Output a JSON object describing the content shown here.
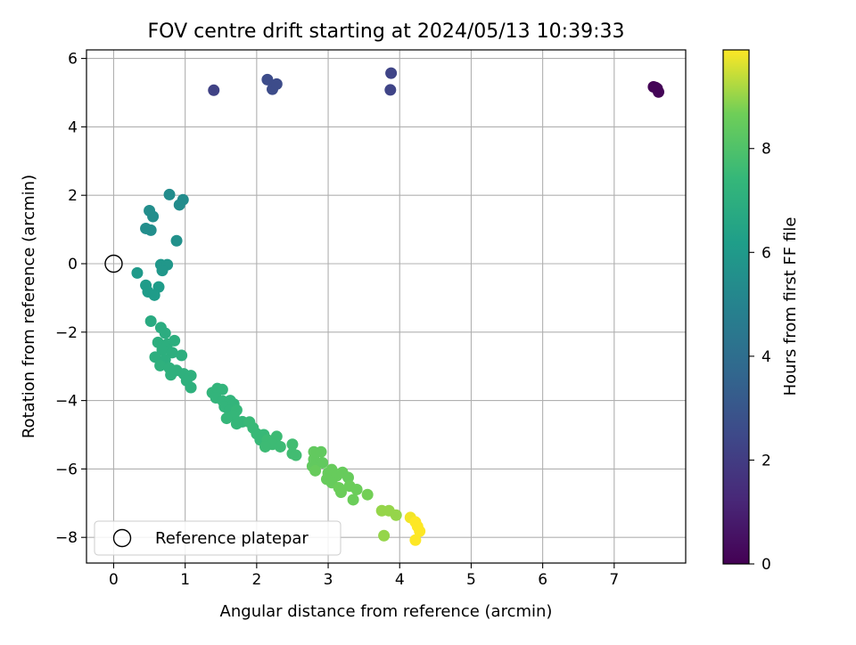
{
  "chart_data": {
    "type": "scatter",
    "title": "FOV centre drift starting at 2024/05/13 10:39:33",
    "xlabel": "Angular distance from reference (arcmin)",
    "ylabel": "Rotation from reference (arcmin)",
    "xlim": [
      -0.38,
      8.0
    ],
    "ylim": [
      -8.75,
      6.25
    ],
    "xticks": [
      0,
      1,
      2,
      3,
      4,
      5,
      6,
      7
    ],
    "yticks": [
      -8,
      -6,
      -4,
      -2,
      0,
      2,
      4,
      6
    ],
    "grid": true,
    "legend": {
      "entries": [
        "Reference platepar"
      ],
      "placement": "lower-left"
    },
    "colorbar": {
      "label": "Hours from first FF file",
      "range": [
        0,
        9.9
      ],
      "ticks": [
        0,
        2,
        4,
        6,
        8
      ],
      "colormap": "viridis"
    },
    "reference_point": {
      "x": 0,
      "y": 0
    },
    "points": [
      [
        7.55,
        5.17,
        0.05
      ],
      [
        7.6,
        5.12,
        0.08
      ],
      [
        7.62,
        5.02,
        0.1
      ],
      [
        7.58,
        5.15,
        0.12
      ],
      [
        1.4,
        5.07,
        2.2
      ],
      [
        3.87,
        5.08,
        2.3
      ],
      [
        3.88,
        5.57,
        2.3
      ],
      [
        2.15,
        5.38,
        2.6
      ],
      [
        2.22,
        5.1,
        2.6
      ],
      [
        2.28,
        5.25,
        2.6
      ],
      [
        0.78,
        2.02,
        5.4
      ],
      [
        0.97,
        1.87,
        5.4
      ],
      [
        0.92,
        1.72,
        5.4
      ],
      [
        0.5,
        1.55,
        5.5
      ],
      [
        0.55,
        1.38,
        5.5
      ],
      [
        0.45,
        1.03,
        5.5
      ],
      [
        0.52,
        0.98,
        5.5
      ],
      [
        0.88,
        0.67,
        5.6
      ],
      [
        0.66,
        -0.03,
        5.9
      ],
      [
        0.75,
        -0.03,
        5.9
      ],
      [
        0.68,
        -0.2,
        5.9
      ],
      [
        0.33,
        -0.27,
        6.0
      ],
      [
        0.45,
        -0.63,
        6.1
      ],
      [
        0.63,
        -0.68,
        6.1
      ],
      [
        0.48,
        -0.82,
        6.1
      ],
      [
        0.57,
        -0.92,
        6.1
      ],
      [
        0.52,
        -1.68,
        6.8
      ],
      [
        0.66,
        -1.87,
        6.9
      ],
      [
        0.72,
        -2.03,
        6.9
      ],
      [
        0.62,
        -2.3,
        7.0
      ],
      [
        0.75,
        -2.35,
        7.0
      ],
      [
        0.85,
        -2.25,
        7.0
      ],
      [
        0.68,
        -2.52,
        7.0
      ],
      [
        0.82,
        -2.6,
        7.0
      ],
      [
        0.58,
        -2.73,
        7.0
      ],
      [
        0.72,
        -2.8,
        7.0
      ],
      [
        0.95,
        -2.68,
        7.0
      ],
      [
        0.65,
        -2.98,
        7.1
      ],
      [
        0.78,
        -3.05,
        7.1
      ],
      [
        0.88,
        -3.12,
        7.1
      ],
      [
        0.8,
        -3.25,
        7.1
      ],
      [
        0.98,
        -3.22,
        7.1
      ],
      [
        1.08,
        -3.27,
        7.1
      ],
      [
        1.02,
        -3.42,
        7.1
      ],
      [
        1.08,
        -3.62,
        7.1
      ],
      [
        1.38,
        -3.77,
        7.3
      ],
      [
        1.45,
        -3.65,
        7.3
      ],
      [
        1.52,
        -3.68,
        7.3
      ],
      [
        1.43,
        -3.92,
        7.3
      ],
      [
        1.53,
        -4.02,
        7.3
      ],
      [
        1.63,
        -4.0,
        7.3
      ],
      [
        1.55,
        -4.18,
        7.3
      ],
      [
        1.68,
        -4.1,
        7.3
      ],
      [
        1.62,
        -4.3,
        7.3
      ],
      [
        1.72,
        -4.28,
        7.4
      ],
      [
        1.68,
        -4.45,
        7.4
      ],
      [
        1.58,
        -4.52,
        7.4
      ],
      [
        1.8,
        -4.62,
        7.4
      ],
      [
        1.72,
        -4.68,
        7.4
      ],
      [
        1.9,
        -4.63,
        7.5
      ],
      [
        1.95,
        -4.8,
        7.5
      ],
      [
        2.0,
        -4.97,
        7.5
      ],
      [
        2.1,
        -5.0,
        7.5
      ],
      [
        2.05,
        -5.15,
        7.5
      ],
      [
        2.15,
        -5.15,
        7.6
      ],
      [
        2.28,
        -5.05,
        7.6
      ],
      [
        2.22,
        -5.28,
        7.6
      ],
      [
        2.12,
        -5.35,
        7.6
      ],
      [
        2.33,
        -5.35,
        7.6
      ],
      [
        2.5,
        -5.28,
        7.7
      ],
      [
        2.5,
        -5.55,
        7.7
      ],
      [
        2.55,
        -5.6,
        7.7
      ],
      [
        2.8,
        -5.5,
        8.4
      ],
      [
        2.9,
        -5.5,
        8.4
      ],
      [
        2.8,
        -5.72,
        8.4
      ],
      [
        2.92,
        -5.82,
        8.4
      ],
      [
        2.78,
        -5.92,
        8.4
      ],
      [
        2.82,
        -6.05,
        8.5
      ],
      [
        3.0,
        -6.12,
        8.5
      ],
      [
        3.05,
        -6.02,
        8.5
      ],
      [
        3.12,
        -6.2,
        8.5
      ],
      [
        2.98,
        -6.3,
        8.5
      ],
      [
        3.05,
        -6.4,
        8.5
      ],
      [
        3.2,
        -6.1,
        8.5
      ],
      [
        3.28,
        -6.25,
        8.5
      ],
      [
        3.15,
        -6.55,
        8.6
      ],
      [
        3.18,
        -6.68,
        8.6
      ],
      [
        3.3,
        -6.5,
        8.6
      ],
      [
        3.4,
        -6.6,
        8.6
      ],
      [
        3.35,
        -6.9,
        8.6
      ],
      [
        3.55,
        -6.75,
        8.7
      ],
      [
        3.75,
        -7.22,
        9.0
      ],
      [
        3.85,
        -7.22,
        9.0
      ],
      [
        3.95,
        -7.35,
        9.0
      ],
      [
        3.78,
        -7.95,
        9.0
      ],
      [
        4.15,
        -7.42,
        9.8
      ],
      [
        4.22,
        -7.55,
        9.9
      ],
      [
        4.25,
        -7.68,
        9.9
      ],
      [
        4.28,
        -7.82,
        9.9
      ],
      [
        4.22,
        -8.08,
        9.9
      ]
    ]
  }
}
